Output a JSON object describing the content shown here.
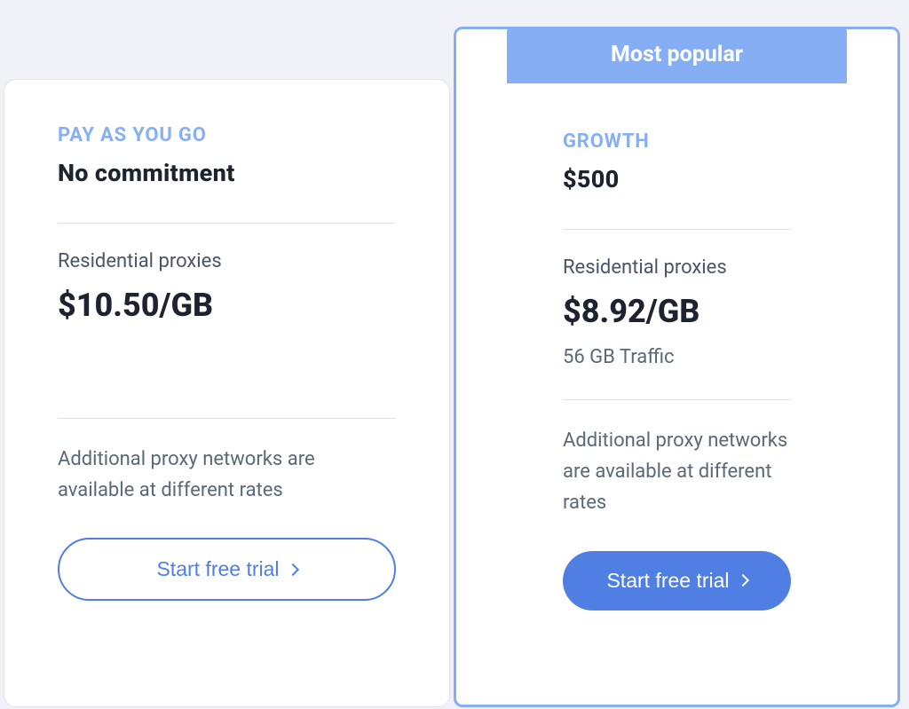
{
  "colors": {
    "page_bg": "#f0f2f8",
    "card_bg": "#ffffff",
    "card_border": "#e0e4ea",
    "accent_border": "#85aef5",
    "badge_bg": "#85aef5",
    "badge_text": "#ffffff",
    "plan_name": "#86b0f5",
    "heading_text": "#1d2430",
    "body_text": "#5a6878",
    "button_primary_bg": "#4f7fe3",
    "button_primary_text": "#ffffff",
    "button_outline_border": "#4f7fe3",
    "button_outline_text": "#4f7fe3",
    "divider": "#e0e4ea"
  },
  "typography": {
    "plan_name_fontsize": 22,
    "plan_price_fontsize": 27,
    "rate_fontsize": 36,
    "body_fontsize": 22,
    "badge_fontsize": 25,
    "button_fontsize": 23
  },
  "plans": [
    {
      "name": "PAY AS YOU GO",
      "price": "No commitment",
      "proxy_label": "Residential proxies",
      "rate": "$10.50/GB",
      "traffic": null,
      "additional": "Additional proxy networks are available at different rates",
      "cta": "Start free trial",
      "featured": false
    },
    {
      "name": "GROWTH",
      "price": "$500",
      "proxy_label": "Residential proxies",
      "rate": "$8.92/GB",
      "traffic": "56 GB Traffic",
      "additional": "Additional proxy networks are available at different rates",
      "cta": "Start free trial",
      "featured": true,
      "badge": "Most popular"
    }
  ]
}
